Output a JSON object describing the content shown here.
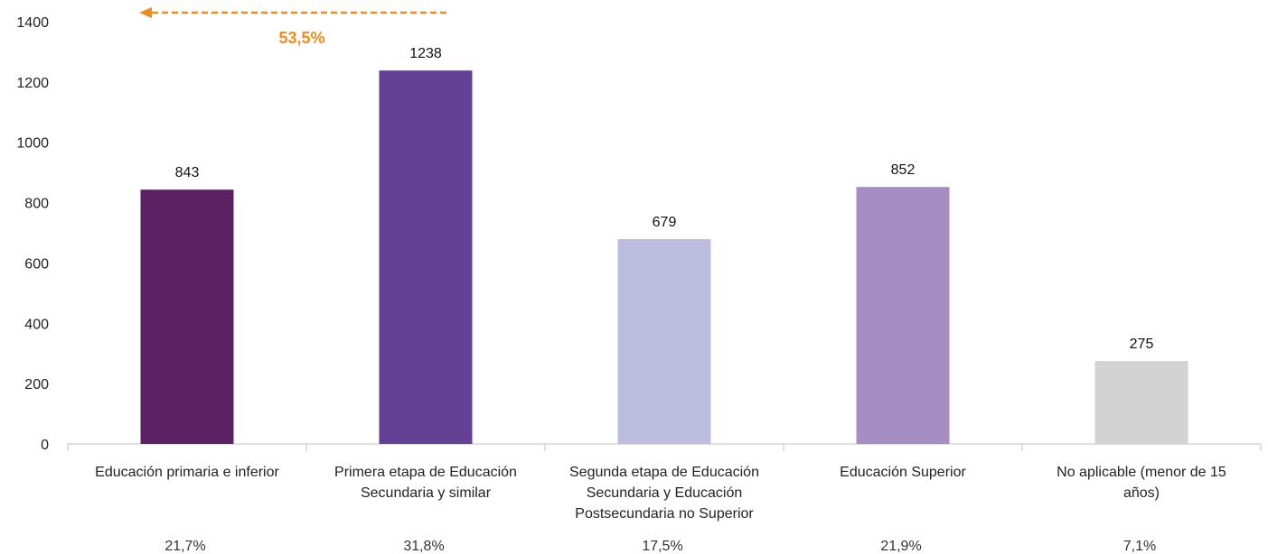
{
  "chart_data": {
    "type": "bar",
    "categories": [
      [
        "Educación primaria e inferior"
      ],
      [
        "Primera etapa de Educación",
        "Secundaria y similar"
      ],
      [
        "Segunda etapa de Educación",
        "Secundaria y Educación",
        "Postsecundaria no Superior"
      ],
      [
        "Educación Superior"
      ],
      [
        "No aplicable (menor de 15",
        "años)"
      ]
    ],
    "values": [
      843,
      1238,
      679,
      852,
      275
    ],
    "value_labels": [
      "843",
      "1238",
      "679",
      "852",
      "275"
    ],
    "percentages": [
      "21,7%",
      "31,8%",
      "17,5%",
      "21,9%",
      "7,1%"
    ],
    "colors": [
      "#5c2163",
      "#654196",
      "#bcbcde",
      "#a78ec2",
      "#d3d3d3"
    ],
    "ylim": [
      0,
      1400
    ],
    "yticks": [
      "0",
      "200",
      "400",
      "600",
      "800",
      "1000",
      "1200",
      "1400"
    ],
    "annotation": {
      "text": "53,5%",
      "color": "#f28b1e",
      "arrow": "left"
    },
    "grid": false,
    "legend": "none"
  }
}
